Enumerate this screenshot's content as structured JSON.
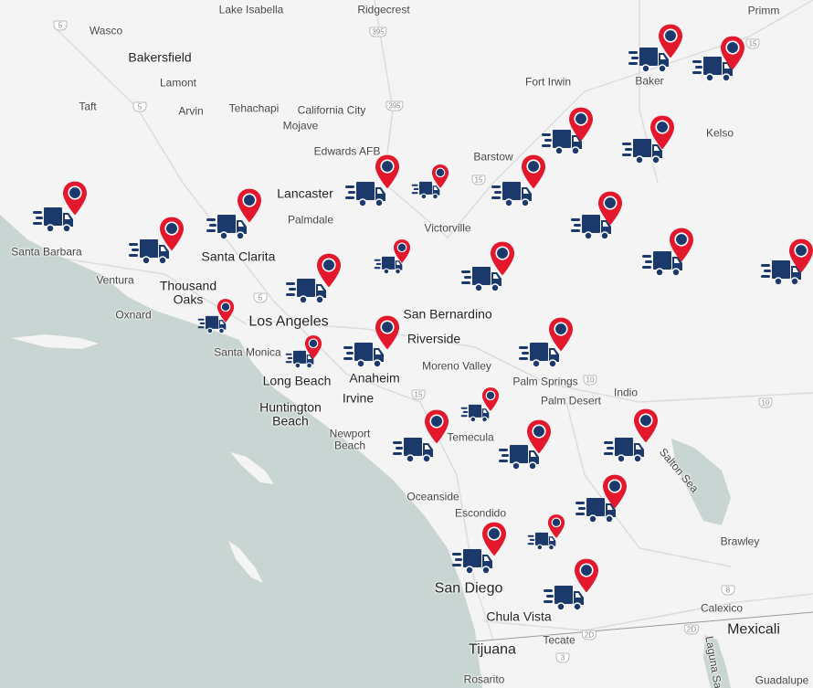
{
  "map": {
    "places": [
      "Wasco",
      "Lake Isabella",
      "Ridgecrest",
      "Primm",
      "Bakersfield",
      "Lamont",
      "Taft",
      "Arvin",
      "Tehachapi",
      "California City",
      "Mojave",
      "Fort Irwin",
      "Baker",
      "Edwards AFB",
      "Barstow",
      "Kelso",
      "Lancaster",
      "Palmdale",
      "Victorville",
      "Santa Barbara",
      "Santa Clarita",
      "Ventura",
      "Thousand Oaks",
      "Oxnard",
      "Los Angeles",
      "San Bernardino",
      "Riverside",
      "Santa Monica",
      "Moreno Valley",
      "Long Beach",
      "Anaheim",
      "Palm Springs",
      "Irvine",
      "Palm Desert",
      "Indio",
      "Huntington Beach",
      "Newport Beach",
      "Temecula",
      "Salton Sea",
      "Oceanside",
      "Escondido",
      "Brawley",
      "San Diego",
      "Calexico",
      "Chula Vista",
      "Mexicali",
      "Tijuana",
      "Tecate",
      "Rosarito",
      "Guadalupe",
      "Laguna Sa"
    ],
    "highways": [
      "5",
      "395",
      "15",
      "5",
      "395",
      "15",
      "5",
      "10",
      "15",
      "10",
      "8",
      "2D",
      "3",
      "2D"
    ]
  }
}
